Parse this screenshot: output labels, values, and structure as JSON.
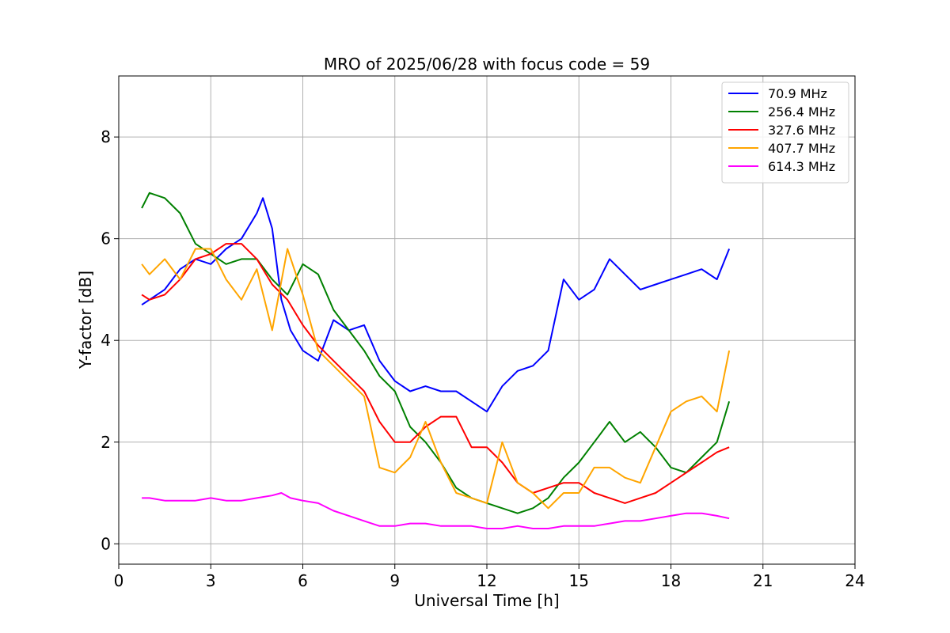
{
  "chart_data": {
    "type": "line",
    "title": "MRO of 2025/06/28 with focus code = 59",
    "xlabel": "Universal Time [h]",
    "ylabel": "Y-factor [dB]",
    "xlim": [
      0,
      24
    ],
    "ylim": [
      -0.4,
      9.2
    ],
    "xticks": [
      0,
      3,
      6,
      9,
      12,
      15,
      18,
      21,
      24
    ],
    "yticks": [
      0,
      2,
      4,
      6,
      8
    ],
    "grid": true,
    "legend_position": "top-right",
    "series": [
      {
        "name": " 70.9 MHz",
        "color": "#0000ff",
        "x": [
          0.75,
          1.0,
          1.5,
          2.0,
          2.5,
          3.0,
          3.5,
          4.0,
          4.5,
          4.7,
          5.0,
          5.3,
          5.6,
          6.0,
          6.5,
          7.0,
          7.5,
          8.0,
          8.5,
          9.0,
          9.5,
          10.0,
          10.5,
          11.0,
          11.5,
          12.0,
          12.5,
          13.0,
          13.5,
          14.0,
          14.5,
          15.0,
          15.5,
          16.0,
          16.5,
          17.0,
          17.5,
          18.0,
          18.5,
          19.0,
          19.5,
          19.9
        ],
        "y": [
          4.7,
          4.8,
          5.0,
          5.4,
          5.6,
          5.5,
          5.8,
          6.0,
          6.5,
          6.8,
          6.2,
          4.8,
          4.2,
          3.8,
          3.6,
          4.4,
          4.2,
          4.3,
          3.6,
          3.2,
          3.0,
          3.1,
          3.0,
          3.0,
          2.8,
          2.6,
          3.1,
          3.4,
          3.5,
          3.8,
          5.2,
          4.8,
          5.0,
          5.6,
          5.3,
          5.0,
          5.1,
          5.2,
          5.3,
          5.4,
          5.2,
          5.8
        ]
      },
      {
        "name": "256.4 MHz",
        "color": "#008000",
        "x": [
          0.75,
          1.0,
          1.5,
          2.0,
          2.5,
          3.0,
          3.5,
          4.0,
          4.5,
          5.0,
          5.5,
          6.0,
          6.5,
          7.0,
          7.5,
          8.0,
          8.5,
          9.0,
          9.5,
          10.0,
          10.5,
          11.0,
          11.5,
          12.0,
          12.5,
          13.0,
          13.5,
          14.0,
          14.5,
          15.0,
          15.5,
          16.0,
          16.5,
          17.0,
          17.5,
          18.0,
          18.5,
          19.0,
          19.5,
          19.9
        ],
        "y": [
          6.6,
          6.9,
          6.8,
          6.5,
          5.9,
          5.7,
          5.5,
          5.6,
          5.6,
          5.2,
          4.9,
          5.5,
          5.3,
          4.6,
          4.2,
          3.8,
          3.3,
          3.0,
          2.3,
          2.0,
          1.6,
          1.1,
          0.9,
          0.8,
          0.7,
          0.6,
          0.7,
          0.9,
          1.3,
          1.6,
          2.0,
          2.4,
          2.0,
          2.2,
          1.9,
          1.5,
          1.4,
          1.7,
          2.0,
          2.8
        ]
      },
      {
        "name": "327.6 MHz",
        "color": "#ff0000",
        "x": [
          0.75,
          1.0,
          1.5,
          2.0,
          2.5,
          3.0,
          3.5,
          4.0,
          4.5,
          5.0,
          5.5,
          6.0,
          6.5,
          7.0,
          7.5,
          8.0,
          8.5,
          9.0,
          9.5,
          10.0,
          10.5,
          11.0,
          11.5,
          12.0,
          12.5,
          13.0,
          13.5,
          14.0,
          14.5,
          15.0,
          15.5,
          16.0,
          16.5,
          17.0,
          17.5,
          18.0,
          18.5,
          19.0,
          19.5,
          19.9
        ],
        "y": [
          4.9,
          4.8,
          4.9,
          5.2,
          5.6,
          5.7,
          5.9,
          5.9,
          5.6,
          5.1,
          4.8,
          4.3,
          3.9,
          3.6,
          3.3,
          3.0,
          2.4,
          2.0,
          2.0,
          2.3,
          2.5,
          2.5,
          1.9,
          1.9,
          1.6,
          1.2,
          1.0,
          1.1,
          1.2,
          1.2,
          1.0,
          0.9,
          0.8,
          0.9,
          1.0,
          1.2,
          1.4,
          1.6,
          1.8,
          1.9
        ]
      },
      {
        "name": "407.7 MHz",
        "color": "#ffa500",
        "x": [
          0.75,
          1.0,
          1.5,
          2.0,
          2.5,
          3.0,
          3.5,
          4.0,
          4.5,
          5.0,
          5.5,
          6.0,
          6.5,
          7.0,
          7.5,
          8.0,
          8.5,
          9.0,
          9.5,
          10.0,
          10.5,
          11.0,
          11.5,
          12.0,
          12.5,
          13.0,
          13.5,
          14.0,
          14.5,
          15.0,
          15.5,
          16.0,
          16.5,
          17.0,
          17.5,
          18.0,
          18.5,
          19.0,
          19.5,
          19.9
        ],
        "y": [
          5.5,
          5.3,
          5.6,
          5.2,
          5.8,
          5.8,
          5.2,
          4.8,
          5.4,
          4.2,
          5.8,
          4.9,
          3.8,
          3.5,
          3.2,
          2.9,
          1.5,
          1.4,
          1.7,
          2.4,
          1.6,
          1.0,
          0.9,
          0.8,
          2.0,
          1.2,
          1.0,
          0.7,
          1.0,
          1.0,
          1.5,
          1.5,
          1.3,
          1.2,
          1.9,
          2.6,
          2.8,
          2.9,
          2.6,
          3.8
        ]
      },
      {
        "name": "614.3 MHz",
        "color": "#ff00ff",
        "x": [
          0.75,
          1.0,
          1.5,
          2.0,
          2.5,
          3.0,
          3.5,
          4.0,
          4.5,
          5.0,
          5.3,
          5.6,
          6.0,
          6.5,
          7.0,
          7.5,
          8.0,
          8.5,
          9.0,
          9.5,
          10.0,
          10.5,
          11.0,
          11.5,
          12.0,
          12.5,
          13.0,
          13.5,
          14.0,
          14.5,
          15.0,
          15.5,
          16.0,
          16.5,
          17.0,
          17.5,
          18.0,
          18.5,
          19.0,
          19.5,
          19.9
        ],
        "y": [
          0.9,
          0.9,
          0.85,
          0.85,
          0.85,
          0.9,
          0.85,
          0.85,
          0.9,
          0.95,
          1.0,
          0.9,
          0.85,
          0.8,
          0.65,
          0.55,
          0.45,
          0.35,
          0.35,
          0.4,
          0.4,
          0.35,
          0.35,
          0.35,
          0.3,
          0.3,
          0.35,
          0.3,
          0.3,
          0.35,
          0.35,
          0.35,
          0.4,
          0.45,
          0.45,
          0.5,
          0.55,
          0.6,
          0.6,
          0.55,
          0.5
        ]
      }
    ]
  }
}
